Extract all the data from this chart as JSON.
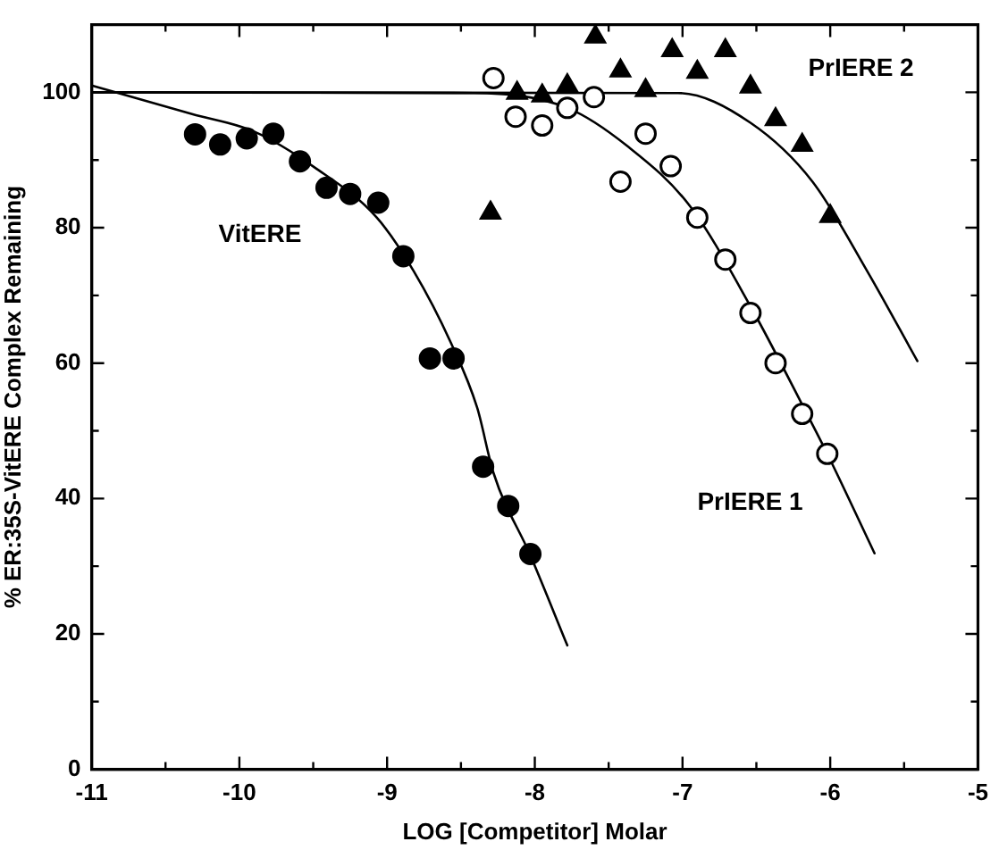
{
  "chart_data": {
    "type": "scatter",
    "xlabel": "LOG [Competitor] Molar",
    "ylabel": "% ER:35S-VitERE Complex Remaining",
    "xlim": [
      -11,
      -5
    ],
    "ylim": [
      0,
      110
    ],
    "xticks": [
      -11,
      {
        "value": -10.5,
        "label": null
      },
      -10,
      {
        "value": -9.5,
        "label": null
      },
      -9,
      {
        "value": -8.5,
        "label": null
      },
      -8,
      {
        "value": -7.5,
        "label": null
      },
      -7,
      {
        "value": -6.5,
        "label": null
      },
      -6,
      {
        "value": -5.5,
        "label": null
      },
      -5
    ],
    "yticks": [
      0,
      {
        "value": 10,
        "label": null
      },
      20,
      {
        "value": 30,
        "label": null
      },
      40,
      {
        "value": 50,
        "label": null
      },
      60,
      {
        "value": 70,
        "label": null
      },
      80,
      {
        "value": 90,
        "label": null
      },
      100
    ],
    "grid": false,
    "legend": false,
    "series": [
      {
        "type": "scatter",
        "marker": "circle",
        "color": "#000000",
        "x": [
          -10.3,
          -10.13,
          -9.95,
          -9.77,
          -9.59,
          -9.41,
          -9.25,
          -9.06,
          -8.89,
          -8.71,
          -8.55,
          -8.35,
          -8.18,
          -8.03
        ],
        "values": [
          93.8,
          92.3,
          93.2,
          93.9,
          89.8,
          85.9,
          85.0,
          83.7,
          75.8,
          60.7,
          60.7,
          44.7,
          38.9,
          31.8
        ]
      },
      {
        "type": "scatter",
        "marker": "circle",
        "color": "#ffffff",
        "x": [
          -8.28,
          -8.13,
          -7.95,
          -7.78,
          -7.6,
          -7.42,
          -7.25,
          -7.08,
          -6.9,
          -6.71,
          -6.54,
          -6.37,
          -6.19,
          -6.02
        ],
        "values": [
          102.1,
          96.4,
          95.1,
          97.7,
          99.3,
          86.8,
          93.9,
          89.1,
          81.5,
          75.3,
          67.4,
          60.0,
          52.5,
          46.6
        ]
      },
      {
        "type": "scatter",
        "marker": "triangle",
        "color": "#000000",
        "x": [
          -8.3,
          -8.12,
          -7.95,
          -7.78,
          -7.59,
          -7.42,
          -7.25,
          -7.07,
          -6.9,
          -6.71,
          -6.54,
          -6.37,
          -6.19,
          -6.0
        ],
        "values": [
          82.2,
          99.9,
          99.5,
          101.0,
          108.2,
          103.2,
          100.3,
          106.2,
          103.0,
          106.2,
          100.8,
          96.0,
          92.2,
          81.7
        ]
      },
      {
        "type": "line",
        "marker": "none",
        "color": "#000000",
        "x": [
          -11,
          -10.32,
          -9.9,
          -9.49,
          -9.07,
          -8.82,
          -8.57,
          -8.39,
          -8.28,
          -8.03,
          -7.78
        ],
        "values": [
          101.0,
          96.8,
          94.2,
          88.9,
          81.5,
          73.6,
          63.1,
          53.4,
          43.8,
          31.6,
          18.3
        ]
      },
      {
        "type": "line",
        "marker": "none",
        "color": "#000000",
        "x": [
          -11,
          -8.41,
          -7.78,
          -7.37,
          -6.95,
          -6.54,
          -6.16,
          -6.02,
          -5.7
        ],
        "values": [
          100.0,
          99.9,
          97.7,
          92.0,
          83.2,
          68.4,
          52.6,
          46.6,
          31.9
        ]
      },
      {
        "type": "line",
        "marker": "none",
        "color": "#000000",
        "x": [
          -11,
          -7.03,
          -6.54,
          -6.12,
          -5.75,
          -5.41
        ],
        "values": [
          100.0,
          99.9,
          95.5,
          86.8,
          73.6,
          60.3
        ]
      }
    ],
    "annotations": [
      "VitERE",
      "PrIERE 1",
      "PrIERE 2"
    ]
  }
}
